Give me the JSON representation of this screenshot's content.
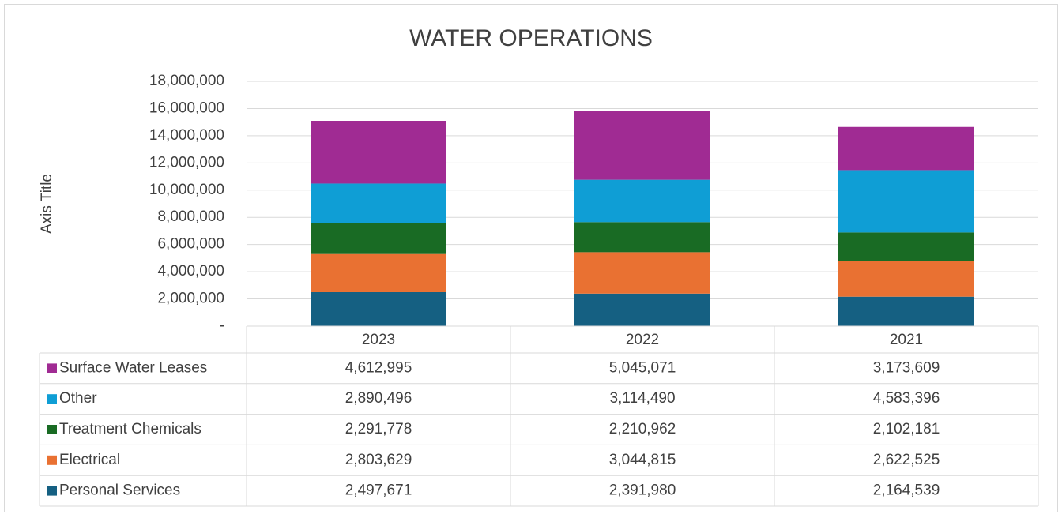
{
  "chart_data": {
    "type": "bar",
    "stacked": true,
    "title": "WATER OPERATIONS",
    "y_label": "Axis Title",
    "categories": [
      "2023",
      "2022",
      "2021"
    ],
    "series": [
      {
        "name": "Personal Services",
        "color": "#156082",
        "values": [
          2497671,
          2391980,
          2164539
        ],
        "value_labels": [
          "2,497,671",
          "2,391,980",
          "2,164,539"
        ]
      },
      {
        "name": "Electrical",
        "color": "#e97132",
        "values": [
          2803629,
          3044815,
          2622525
        ],
        "value_labels": [
          "2,803,629",
          "3,044,815",
          "2,622,525"
        ]
      },
      {
        "name": "Treatment Chemicals",
        "color": "#196b24",
        "values": [
          2291778,
          2210962,
          2102181
        ],
        "value_labels": [
          "2,291,778",
          "2,210,962",
          "2,102,181"
        ]
      },
      {
        "name": "Other",
        "color": "#0f9ed5",
        "values": [
          2890496,
          3114490,
          4583396
        ],
        "value_labels": [
          "2,890,496",
          "3,114,490",
          "4,583,396"
        ]
      },
      {
        "name": "Surface Water Leases",
        "color": "#a02b93",
        "values": [
          4612995,
          5045071,
          3173609
        ],
        "value_labels": [
          "4,612,995",
          "5,045,071",
          "3,173,609"
        ]
      }
    ],
    "ylim": [
      0,
      18000000
    ],
    "yticks": [
      {
        "value": 0,
        "label": "-"
      },
      {
        "value": 2000000,
        "label": "2,000,000"
      },
      {
        "value": 4000000,
        "label": "4,000,000"
      },
      {
        "value": 6000000,
        "label": "6,000,000"
      },
      {
        "value": 8000000,
        "label": "8,000,000"
      },
      {
        "value": 10000000,
        "label": "10,000,000"
      },
      {
        "value": 12000000,
        "label": "12,000,000"
      },
      {
        "value": 14000000,
        "label": "14,000,000"
      },
      {
        "value": 16000000,
        "label": "16,000,000"
      },
      {
        "value": 18000000,
        "label": "18,000,000"
      }
    ],
    "grid": true,
    "data_table": true
  }
}
